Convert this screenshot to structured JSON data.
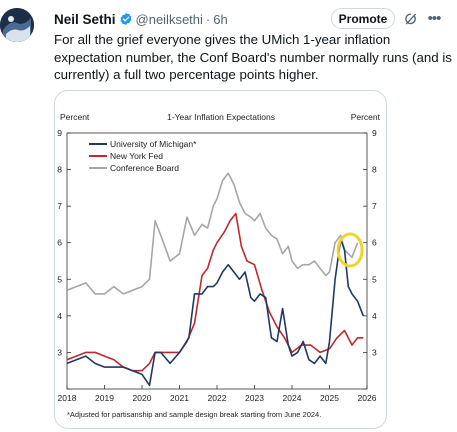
{
  "author": {
    "name": "Neil Sethi",
    "handle": "@neilksethi",
    "time": "6h"
  },
  "actions": {
    "promote_label": "Promote",
    "grok_icon": "grok-icon",
    "more_icon": "more-icon"
  },
  "tweet": {
    "text": "For all the grief everyone gives the UMich 1-year inflation expectation number, the Conf Board's number normally runs (and is currently) a full two percentage points higher."
  },
  "colors": {
    "michigan": "#1f3864",
    "ny_fed": "#c0282d",
    "conference_board": "#a6a6a6",
    "highlight": "#f2d32a",
    "verified": "#1d9bf0"
  },
  "chart_data": {
    "type": "line",
    "title": "1-Year Inflation Expectations",
    "ylabel_left": "Percent",
    "ylabel_right": "Percent",
    "ylim": [
      2,
      9
    ],
    "yticks": [
      "2",
      "3",
      "4",
      "5",
      "6",
      "7",
      "8",
      "9"
    ],
    "xlim": [
      2018,
      2026
    ],
    "xticks": [
      "2018",
      "2019",
      "2020",
      "2021",
      "2022",
      "2023",
      "2024",
      "2025",
      "2026"
    ],
    "footnote": "*Adjusted for partisanship and sample design break starting from June 2024.",
    "legend_position": "top-left",
    "series": [
      {
        "name": "University of Michigan*",
        "color": "#1f3864",
        "x": [
          2018.0,
          2018.25,
          2018.5,
          2018.75,
          2019.0,
          2019.25,
          2019.5,
          2019.75,
          2020.0,
          2020.2,
          2020.35,
          2020.5,
          2020.75,
          2021.0,
          2021.25,
          2021.4,
          2021.6,
          2021.75,
          2021.9,
          2022.0,
          2022.15,
          2022.3,
          2022.45,
          2022.6,
          2022.75,
          2022.9,
          2023.0,
          2023.15,
          2023.3,
          2023.45,
          2023.6,
          2023.75,
          2023.9,
          2024.0,
          2024.15,
          2024.3,
          2024.45,
          2024.6,
          2024.75,
          2024.9,
          2025.0,
          2025.15,
          2025.3,
          2025.4,
          2025.5,
          2025.6,
          2025.75,
          2025.9
        ],
        "y": [
          2.7,
          2.8,
          2.9,
          2.7,
          2.6,
          2.6,
          2.6,
          2.5,
          2.4,
          2.1,
          3.0,
          3.0,
          2.7,
          3.0,
          3.4,
          4.6,
          4.6,
          4.8,
          4.8,
          4.9,
          5.2,
          5.4,
          5.2,
          5.0,
          5.2,
          4.5,
          4.4,
          4.6,
          4.5,
          3.4,
          3.3,
          4.2,
          3.2,
          2.9,
          3.0,
          3.3,
          2.8,
          2.7,
          2.9,
          2.7,
          3.3,
          5.0,
          6.1,
          5.8,
          4.8,
          4.6,
          4.4,
          4.0
        ]
      },
      {
        "name": "New York Fed",
        "color": "#c0282d",
        "x": [
          2018.0,
          2018.25,
          2018.5,
          2018.75,
          2019.0,
          2019.25,
          2019.5,
          2019.75,
          2020.0,
          2020.2,
          2020.35,
          2020.5,
          2020.75,
          2021.0,
          2021.2,
          2021.4,
          2021.6,
          2021.75,
          2021.9,
          2022.0,
          2022.2,
          2022.35,
          2022.5,
          2022.65,
          2022.8,
          2023.0,
          2023.2,
          2023.4,
          2023.6,
          2023.8,
          2024.0,
          2024.25,
          2024.5,
          2024.75,
          2025.0,
          2025.2,
          2025.4,
          2025.6,
          2025.75,
          2025.9
        ],
        "y": [
          2.8,
          2.9,
          3.0,
          3.0,
          2.9,
          2.8,
          2.6,
          2.5,
          2.5,
          2.7,
          3.0,
          3.0,
          3.0,
          3.0,
          3.3,
          3.8,
          5.1,
          5.3,
          5.8,
          6.0,
          6.3,
          6.6,
          6.8,
          5.9,
          5.5,
          5.4,
          4.7,
          4.1,
          3.7,
          3.4,
          3.0,
          3.2,
          3.2,
          3.0,
          3.1,
          3.4,
          3.6,
          3.2,
          3.4,
          3.4
        ]
      },
      {
        "name": "Conference Board",
        "color": "#a6a6a6",
        "x": [
          2018.0,
          2018.25,
          2018.5,
          2018.75,
          2019.0,
          2019.25,
          2019.5,
          2019.75,
          2020.0,
          2020.2,
          2020.35,
          2020.5,
          2020.75,
          2021.0,
          2021.2,
          2021.4,
          2021.6,
          2021.75,
          2021.9,
          2022.0,
          2022.15,
          2022.3,
          2022.45,
          2022.6,
          2022.75,
          2022.9,
          2023.0,
          2023.15,
          2023.3,
          2023.45,
          2023.6,
          2023.75,
          2023.9,
          2024.0,
          2024.15,
          2024.3,
          2024.45,
          2024.6,
          2024.75,
          2024.9,
          2025.0,
          2025.15,
          2025.3,
          2025.4,
          2025.5,
          2025.6,
          2025.75
        ],
        "y": [
          4.7,
          4.8,
          4.9,
          4.6,
          4.6,
          4.8,
          4.6,
          4.7,
          4.8,
          5.0,
          6.6,
          6.2,
          5.5,
          5.7,
          6.7,
          6.2,
          6.5,
          6.4,
          7.0,
          7.2,
          7.7,
          7.9,
          7.6,
          7.1,
          6.8,
          6.7,
          6.6,
          6.8,
          6.4,
          6.2,
          6.1,
          5.7,
          5.9,
          5.5,
          5.3,
          5.4,
          5.4,
          5.5,
          5.3,
          5.1,
          5.2,
          6.0,
          6.2,
          5.8,
          5.7,
          5.6,
          6.0
        ]
      }
    ]
  }
}
